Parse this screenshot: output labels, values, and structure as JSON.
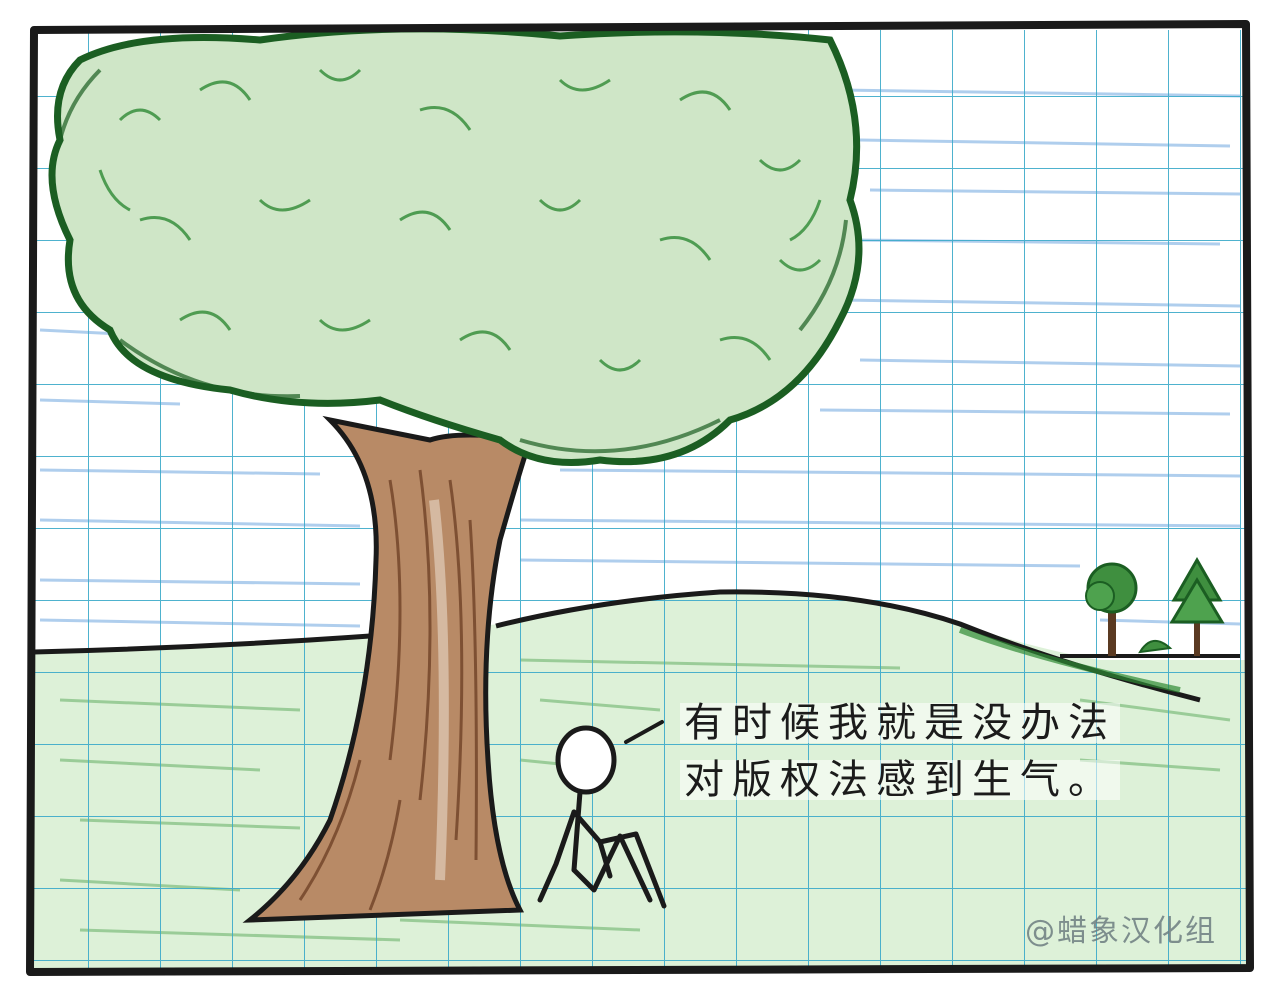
{
  "comic": {
    "caption_line_1": "有时候我就是没办法",
    "caption_line_2": "对版权法感到生气。",
    "watermark": "@蜡象汉化组"
  },
  "colors": {
    "grid": "#3aa9c9",
    "sky_shading": "#4b8fd6",
    "foliage": "#2f8a35",
    "foliage_dark": "#1b5e22",
    "trunk": "#7a4a2b",
    "grass": "#5aa95a",
    "outline": "#1a1a1a"
  }
}
